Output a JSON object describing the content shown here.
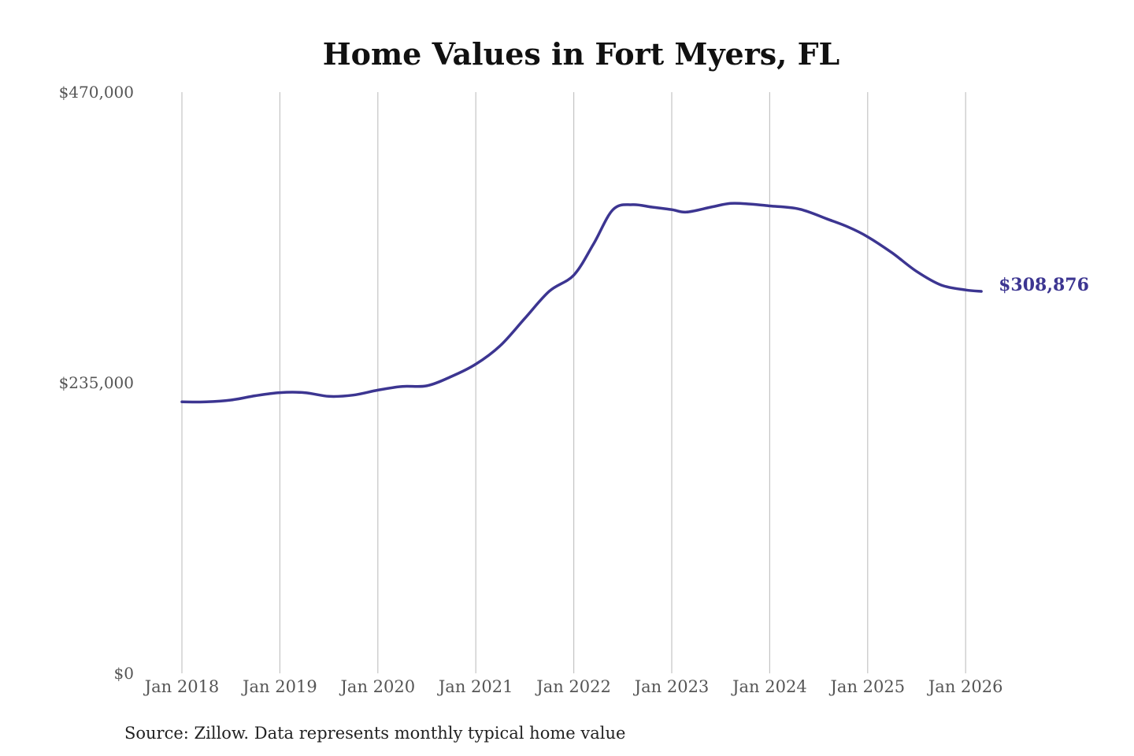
{
  "chart_data": {
    "type": "line",
    "title": "Home Values in Fort Myers, FL",
    "source_note": "Source: Zillow. Data represents monthly typical home value",
    "ylim": [
      0,
      470000
    ],
    "y_ticks": [
      {
        "value": 0,
        "label": "$0"
      },
      {
        "value": 235000,
        "label": "$235,000"
      },
      {
        "value": 470000,
        "label": "$470,000"
      }
    ],
    "x_ticks": [
      {
        "value": 2018.0,
        "label": "Jan 2018"
      },
      {
        "value": 2019.0,
        "label": "Jan 2019"
      },
      {
        "value": 2020.0,
        "label": "Jan 2020"
      },
      {
        "value": 2021.0,
        "label": "Jan 2021"
      },
      {
        "value": 2022.0,
        "label": "Jan 2022"
      },
      {
        "value": 2023.0,
        "label": "Jan 2023"
      },
      {
        "value": 2024.0,
        "label": "Jan 2024"
      },
      {
        "value": 2025.0,
        "label": "Jan 2025"
      },
      {
        "value": 2026.0,
        "label": "Jan 2026"
      }
    ],
    "xlim": [
      2018.0,
      2026.16
    ],
    "grid": "vertical",
    "line_color": "#3c3591",
    "end_label": "$308,876",
    "series": [
      {
        "x": [
          2018.0,
          2018.25,
          2018.5,
          2018.75,
          2019.0,
          2019.25,
          2019.5,
          2019.75,
          2020.0,
          2020.25,
          2020.5,
          2020.75,
          2021.0,
          2021.25,
          2021.5,
          2021.75,
          2022.0,
          2022.2,
          2022.4,
          2022.6,
          2022.8,
          2023.0,
          2023.15,
          2023.4,
          2023.6,
          2023.8,
          2024.0,
          2024.3,
          2024.6,
          2024.8,
          2025.0,
          2025.25,
          2025.5,
          2025.75,
          2026.0,
          2026.16
        ],
        "y": [
          219500,
          219500,
          221000,
          224500,
          227000,
          227000,
          224000,
          225000,
          229000,
          232000,
          232500,
          240000,
          250000,
          265000,
          287000,
          309000,
          322000,
          347000,
          375000,
          379000,
          377000,
          375000,
          373000,
          377000,
          380000,
          379500,
          378000,
          375500,
          367000,
          361000,
          353000,
          340000,
          325000,
          314000,
          310000,
          308876
        ]
      }
    ]
  }
}
